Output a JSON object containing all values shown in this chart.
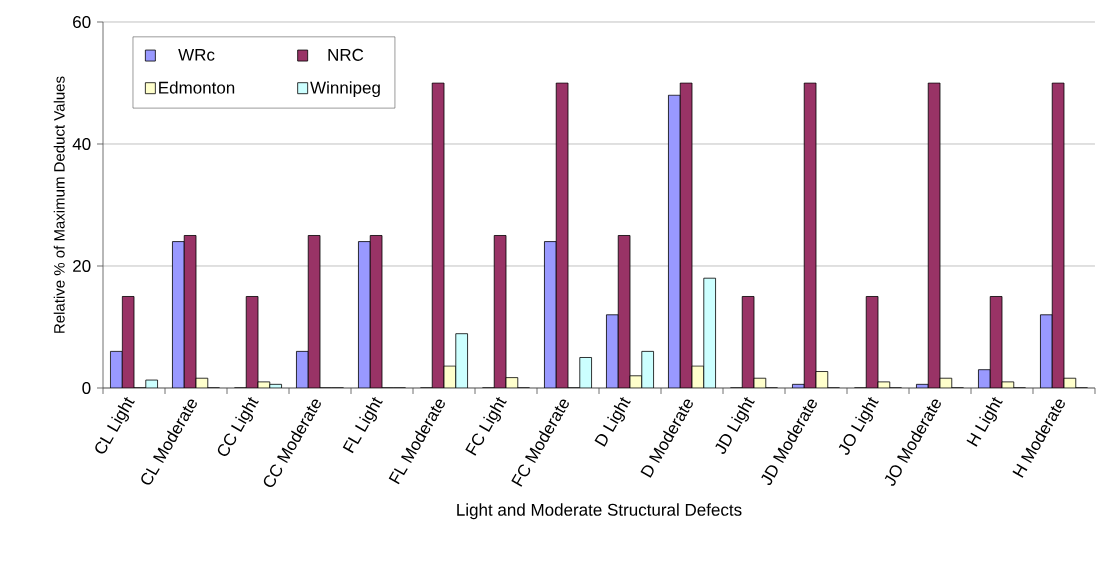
{
  "chart_data": {
    "type": "bar",
    "xlabel": "Light and Moderate Structural Defects",
    "ylabel": "Relative % of Maximum Deduct Values",
    "categories": [
      "CL Light",
      "CL Moderate",
      "CC Light",
      "CC Moderate",
      "FL Light",
      "FL Moderate",
      "FC Light",
      "FC Moderate",
      "D Light",
      "D Moderate",
      "JD Light",
      "JD Moderate",
      "JO Light",
      "JO Moderate",
      "H Light",
      "H Moderate"
    ],
    "series": [
      {
        "name": "WRc",
        "color": "#9999ff",
        "values": [
          6,
          24,
          0,
          6,
          24,
          0,
          0,
          24,
          12,
          48,
          0,
          0.6,
          0,
          0.6,
          3,
          12
        ]
      },
      {
        "name": "NRC",
        "color": "#993366",
        "values": [
          15,
          25,
          15,
          25,
          25,
          50,
          25,
          50,
          25,
          50,
          15,
          50,
          15,
          50,
          15,
          50
        ]
      },
      {
        "name": "Edmonton",
        "color": "#ffffcc",
        "values": [
          0,
          1.6,
          1,
          0,
          0,
          3.6,
          1.7,
          0,
          2,
          3.6,
          1.6,
          2.7,
          1,
          1.6,
          1,
          1.6
        ]
      },
      {
        "name": "Winnipeg",
        "color": "#ccffff",
        "values": [
          1.3,
          0,
          0.6,
          0,
          0,
          8.9,
          0,
          5,
          6,
          18,
          0,
          0,
          0,
          0,
          0,
          0
        ]
      }
    ],
    "ylim": [
      0,
      60
    ],
    "yticks": [
      0,
      20,
      40,
      60
    ],
    "grid": "y",
    "legend": "top left"
  }
}
